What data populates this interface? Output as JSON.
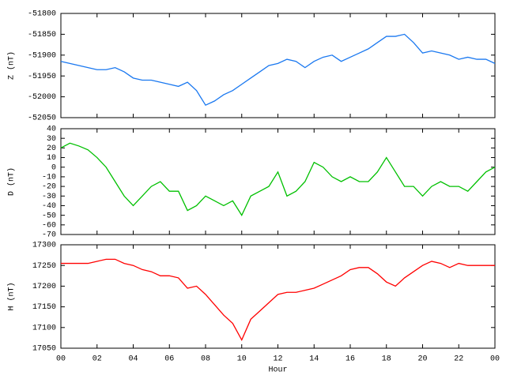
{
  "chart_data": [
    {
      "type": "line",
      "ylabel": "Z (nT)",
      "xlim": [
        0,
        24
      ],
      "ylim": [
        -52050,
        -51800
      ],
      "yticks": [
        -51800,
        -51850,
        -51900,
        -51950,
        -52000,
        -52050
      ],
      "x": [
        0,
        0.5,
        1,
        1.5,
        2,
        2.5,
        3,
        3.5,
        4,
        4.5,
        5,
        5.5,
        6,
        6.5,
        7,
        7.5,
        8,
        8.5,
        9,
        9.5,
        10,
        10.5,
        11,
        11.5,
        12,
        12.5,
        13,
        13.5,
        14,
        14.5,
        15,
        15.5,
        16,
        16.5,
        17,
        17.5,
        18,
        18.5,
        19,
        19.5,
        20,
        20.5,
        21,
        21.5,
        22,
        22.5,
        23,
        23.5,
        24
      ],
      "series": [
        {
          "color": "#1a78f0",
          "values": [
            -51915,
            -51920,
            -51925,
            -51930,
            -51935,
            -51935,
            -51930,
            -51940,
            -51955,
            -51960,
            -51960,
            -51965,
            -51970,
            -51975,
            -51965,
            -51985,
            -52020,
            -52010,
            -51995,
            -51985,
            -51970,
            -51955,
            -51940,
            -51925,
            -51920,
            -51910,
            -51915,
            -51930,
            -51915,
            -51905,
            -51900,
            -51915,
            -51905,
            -51895,
            -51885,
            -51870,
            -51855,
            -51855,
            -51850,
            -51870,
            -51895,
            -51890,
            -51895,
            -51900,
            -51910,
            -51905,
            -51910,
            -51910,
            -51920
          ]
        }
      ]
    },
    {
      "type": "line",
      "ylabel": "D (nT)",
      "xlim": [
        0,
        24
      ],
      "ylim": [
        -70,
        40
      ],
      "yticks": [
        40,
        30,
        20,
        10,
        0,
        -10,
        -20,
        -30,
        -40,
        -50,
        -60,
        -70
      ],
      "x": [
        0,
        0.5,
        1,
        1.5,
        2,
        2.5,
        3,
        3.5,
        4,
        4.5,
        5,
        5.5,
        6,
        6.5,
        7,
        7.5,
        8,
        8.5,
        9,
        9.5,
        10,
        10.5,
        11,
        11.5,
        12,
        12.5,
        13,
        13.5,
        14,
        14.5,
        15,
        15.5,
        16,
        16.5,
        17,
        17.5,
        18,
        18.5,
        19,
        19.5,
        20,
        20.5,
        21,
        21.5,
        22,
        22.5,
        23,
        23.5,
        24
      ],
      "series": [
        {
          "color": "#00c000",
          "values": [
            20,
            25,
            22,
            18,
            10,
            0,
            -15,
            -30,
            -40,
            -30,
            -20,
            -15,
            -25,
            -25,
            -45,
            -40,
            -30,
            -35,
            -40,
            -35,
            -50,
            -30,
            -25,
            -20,
            -5,
            -30,
            -25,
            -15,
            5,
            0,
            -10,
            -15,
            -10,
            -15,
            -15,
            -5,
            10,
            -5,
            -20,
            -20,
            -30,
            -20,
            -15,
            -20,
            -20,
            -25,
            -15,
            -5,
            0
          ]
        }
      ]
    },
    {
      "type": "line",
      "ylabel": "H (nT)",
      "xlabel": "Hour",
      "xlim": [
        0,
        24
      ],
      "ylim": [
        17050,
        17300
      ],
      "yticks": [
        17300,
        17250,
        17200,
        17150,
        17100,
        17050
      ],
      "xticks": [
        {
          "value": 0,
          "label": "00"
        },
        {
          "value": 2,
          "label": "02"
        },
        {
          "value": 4,
          "label": "04"
        },
        {
          "value": 6,
          "label": "06"
        },
        {
          "value": 8,
          "label": "08"
        },
        10,
        12,
        14,
        16,
        18,
        20,
        22,
        {
          "value": 24,
          "label": "00"
        }
      ],
      "x": [
        0,
        0.5,
        1,
        1.5,
        2,
        2.5,
        3,
        3.5,
        4,
        4.5,
        5,
        5.5,
        6,
        6.5,
        7,
        7.5,
        8,
        8.5,
        9,
        9.5,
        10,
        10.5,
        11,
        11.5,
        12,
        12.5,
        13,
        13.5,
        14,
        14.5,
        15,
        15.5,
        16,
        16.5,
        17,
        17.5,
        18,
        18.5,
        19,
        19.5,
        20,
        20.5,
        21,
        21.5,
        22,
        22.5,
        23,
        23.5,
        24
      ],
      "series": [
        {
          "color": "#ff0000",
          "values": [
            17255,
            17255,
            17255,
            17255,
            17260,
            17265,
            17265,
            17255,
            17250,
            17240,
            17235,
            17225,
            17225,
            17220,
            17195,
            17200,
            17180,
            17155,
            17130,
            17110,
            17070,
            17120,
            17140,
            17160,
            17180,
            17185,
            17185,
            17190,
            17195,
            17205,
            17215,
            17225,
            17240,
            17245,
            17245,
            17230,
            17210,
            17200,
            17220,
            17235,
            17250,
            17260,
            17255,
            17245,
            17255,
            17250,
            17250,
            17250,
            17250
          ]
        }
      ]
    }
  ]
}
